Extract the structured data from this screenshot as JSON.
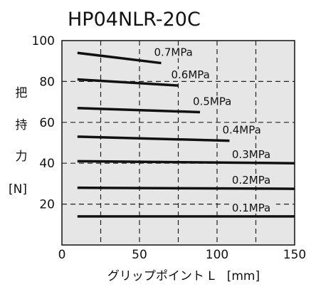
{
  "chart_data": {
    "type": "line",
    "title": "HP04NLR-20C",
    "xlabel": "グリップポイント L　[mm]",
    "ylabel": [
      "把",
      "持",
      "力",
      "[N]"
    ],
    "xlim": [
      0,
      150
    ],
    "ylim": [
      0,
      100
    ],
    "xticks": [
      0,
      50,
      100,
      150
    ],
    "yticks": [
      20,
      40,
      60,
      80,
      100
    ],
    "grid": true,
    "series": [
      {
        "name": "0.1MPa",
        "x": [
          10,
          150
        ],
        "y": [
          14,
          14
        ]
      },
      {
        "name": "0.2MPa",
        "x": [
          10,
          150
        ],
        "y": [
          28,
          27.5
        ]
      },
      {
        "name": "0.3MPa",
        "x": [
          10,
          150
        ],
        "y": [
          41,
          40
        ]
      },
      {
        "name": "0.4MPa",
        "x": [
          10,
          108
        ],
        "y": [
          53,
          51
        ]
      },
      {
        "name": "0.5MPa",
        "x": [
          10,
          89
        ],
        "y": [
          67,
          65
        ]
      },
      {
        "name": "0.6MPa",
        "x": [
          10,
          75
        ],
        "y": [
          81,
          78
        ]
      },
      {
        "name": "0.7MPa",
        "x": [
          10,
          64
        ],
        "y": [
          94,
          89
        ]
      }
    ]
  }
}
